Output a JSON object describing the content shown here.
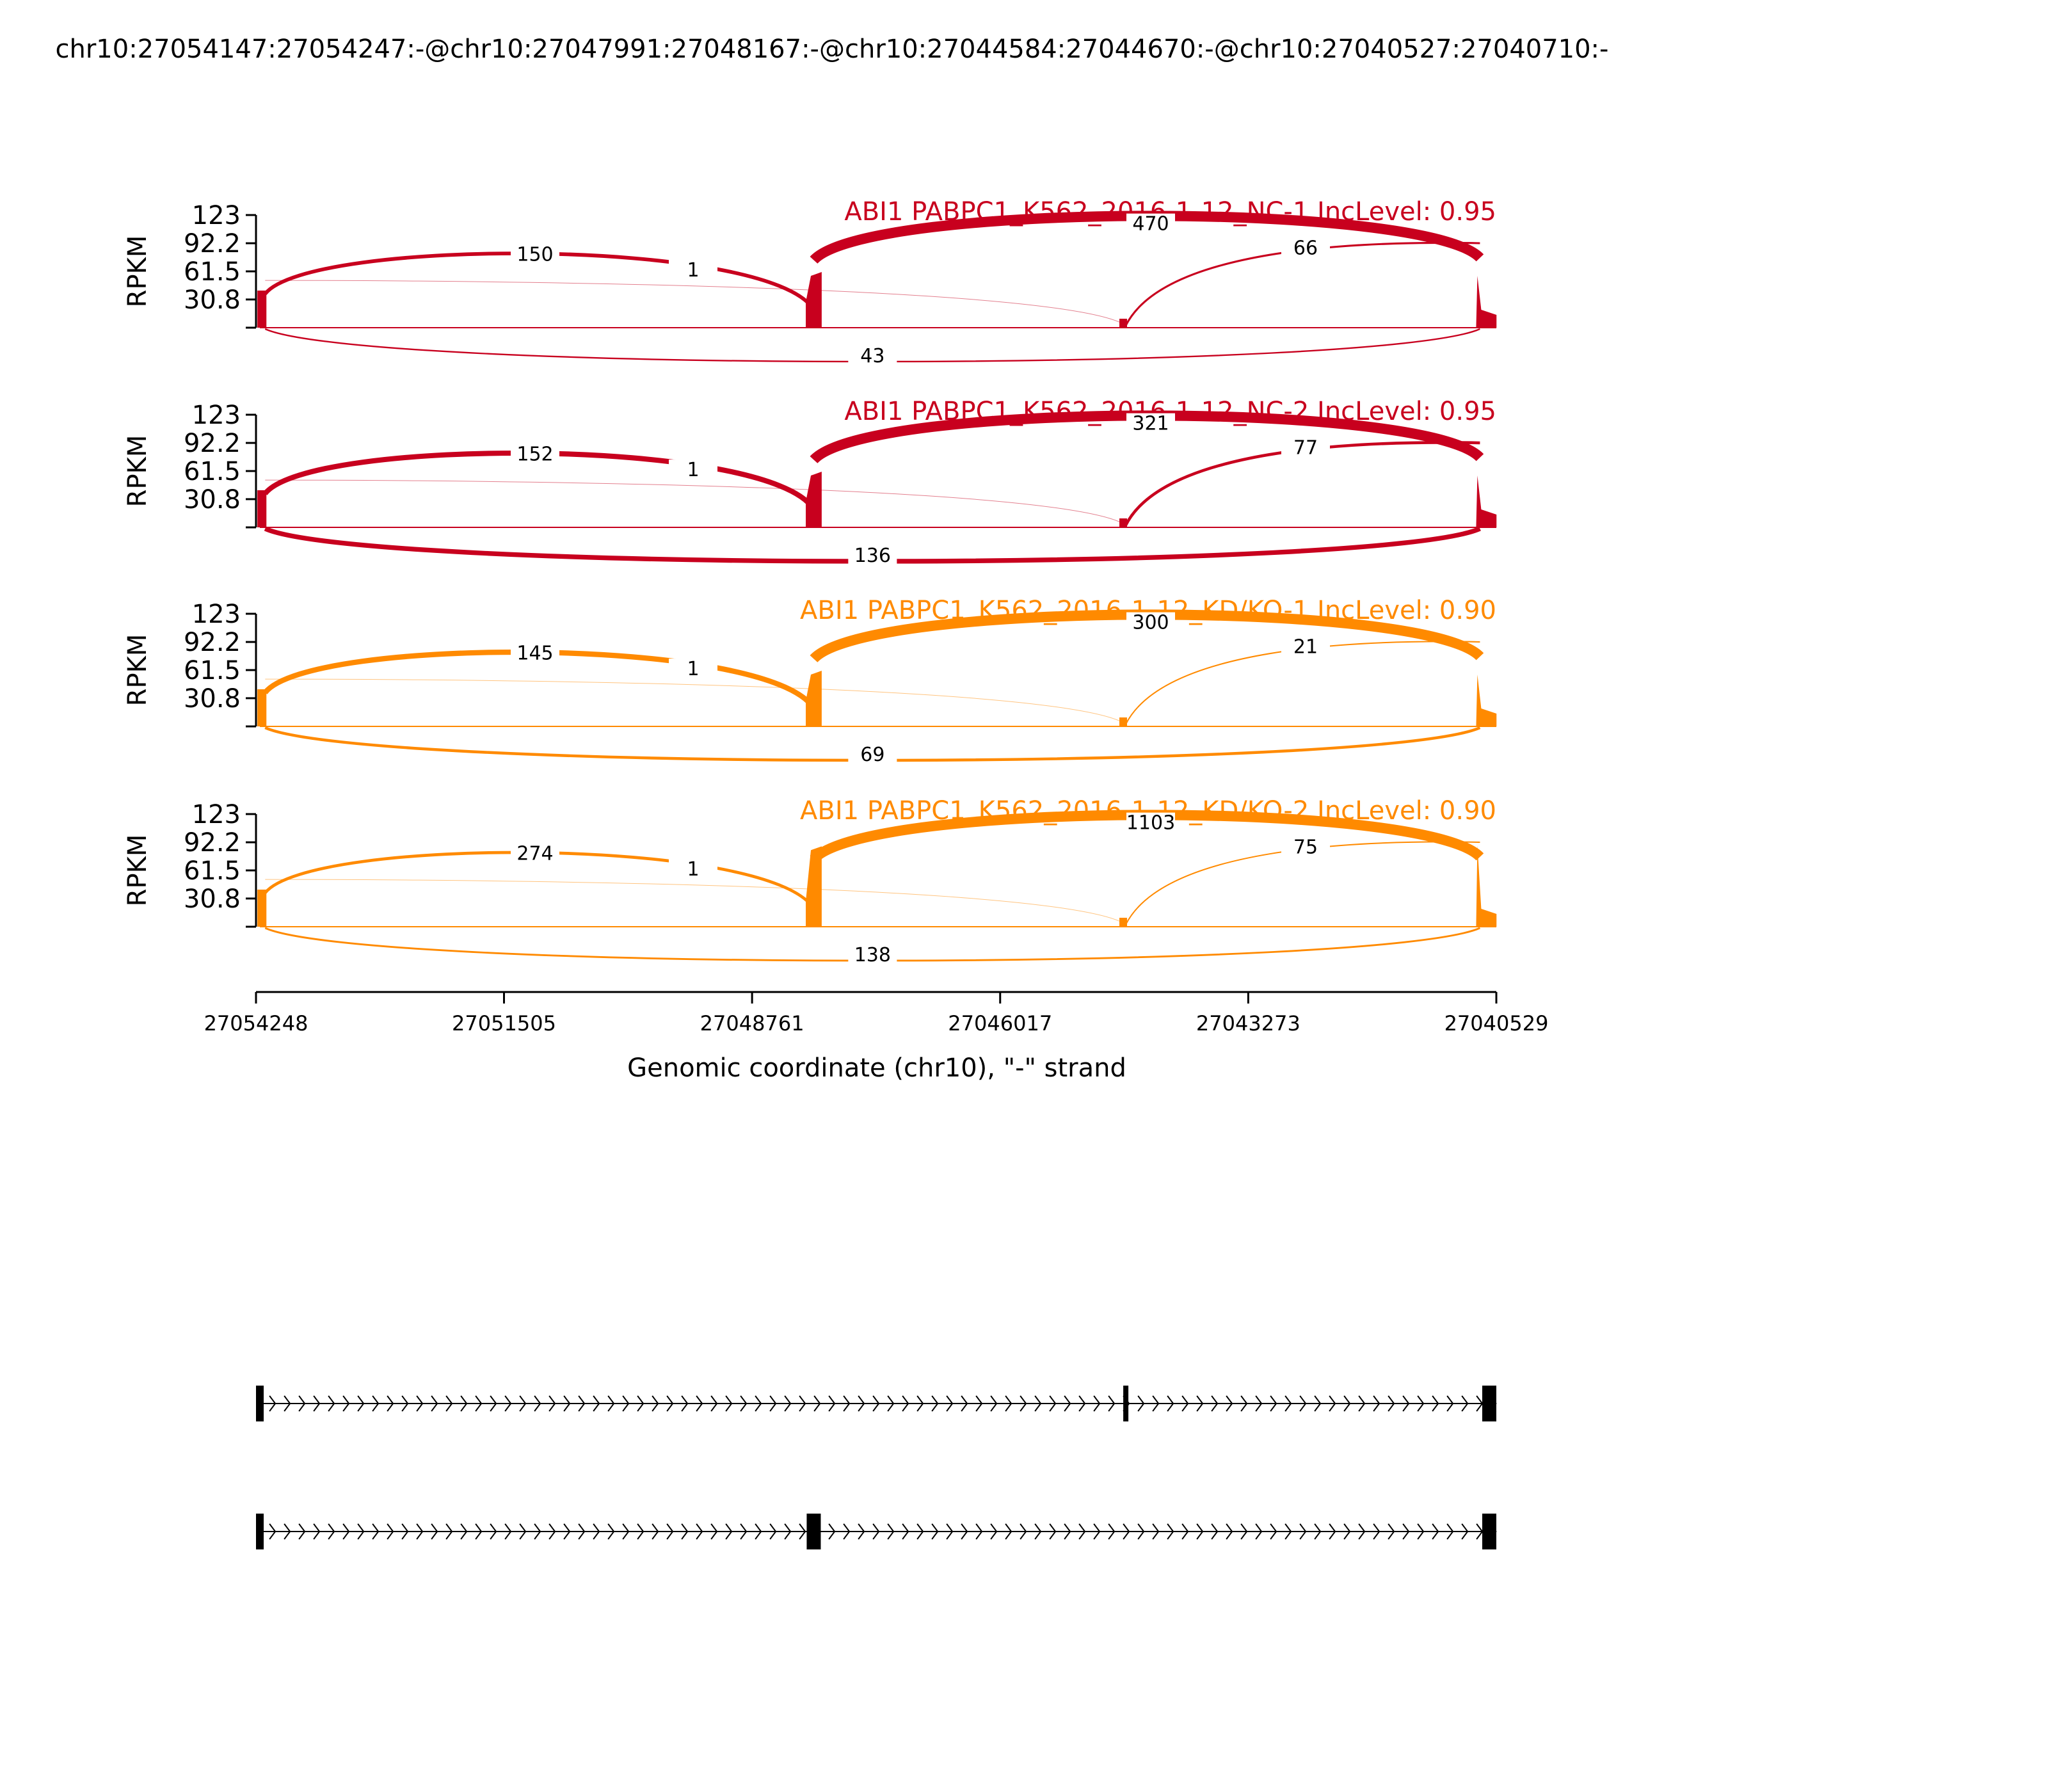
{
  "title": "chr10:27054147:27054247:-@chr10:27047991:27048167:-@chr10:27044584:27044670:-@chr10:27040527:27040710:-",
  "chart_data": {
    "type": "sashimi",
    "ylabel": "RPKM",
    "yticks": [
      "30.8",
      "61.5",
      "92.2",
      "123"
    ],
    "ylim": [
      0,
      123
    ],
    "xlabel": "Genomic coordinate (chr10), \"-\" strand",
    "xticks": [
      "27054248",
      "27051505",
      "27048761",
      "27046017",
      "27043273",
      "27040529"
    ],
    "xlim": [
      27054248,
      27040529
    ],
    "exons": {
      "e1": [
        27054147,
        27054247
      ],
      "e2": [
        27047991,
        27048167
      ],
      "e3": [
        27044584,
        27044670
      ],
      "e4": [
        27040527,
        27040710
      ]
    },
    "panels": [
      {
        "label": "ABI1 PABPC1_K562_2016-1-12_NC-1 IncLevel: 0.95",
        "color": "#c8001e",
        "junctions": [
          {
            "from": "e1",
            "to": "e2",
            "count": "150",
            "above": true
          },
          {
            "from": "e1",
            "to": "e3",
            "count": "1",
            "above": true
          },
          {
            "from": "e2",
            "to": "e4",
            "count": "470",
            "above": true
          },
          {
            "from": "e3",
            "to": "e4",
            "count": "66",
            "above": true
          },
          {
            "from": "e1",
            "to": "e4",
            "count": "43",
            "above": false
          }
        ]
      },
      {
        "label": "ABI1 PABPC1_K562_2016-1-12_NC-2 IncLevel: 0.95",
        "color": "#c8001e",
        "junctions": [
          {
            "from": "e1",
            "to": "e2",
            "count": "152",
            "above": true
          },
          {
            "from": "e1",
            "to": "e3",
            "count": "1",
            "above": true
          },
          {
            "from": "e2",
            "to": "e4",
            "count": "321",
            "above": true
          },
          {
            "from": "e3",
            "to": "e4",
            "count": "77",
            "above": true
          },
          {
            "from": "e1",
            "to": "e4",
            "count": "136",
            "above": false
          }
        ]
      },
      {
        "label": "ABI1 PABPC1_K562_2016-1-12_KD/KO-1 IncLevel: 0.90",
        "color": "#ff8a00",
        "junctions": [
          {
            "from": "e1",
            "to": "e2",
            "count": "145",
            "above": true
          },
          {
            "from": "e1",
            "to": "e3",
            "count": "1",
            "above": true
          },
          {
            "from": "e2",
            "to": "e4",
            "count": "300",
            "above": true
          },
          {
            "from": "e3",
            "to": "e4",
            "count": "21",
            "above": true
          },
          {
            "from": "e1",
            "to": "e4",
            "count": "69",
            "above": false
          }
        ]
      },
      {
        "label": "ABI1 PABPC1_K562_2016-1-12_KD/KO-2 IncLevel: 0.90",
        "color": "#ff8a00",
        "junctions": [
          {
            "from": "e1",
            "to": "e2",
            "count": "274",
            "above": true
          },
          {
            "from": "e1",
            "to": "e3",
            "count": "1",
            "above": true
          },
          {
            "from": "e2",
            "to": "e4",
            "count": "1103",
            "above": true
          },
          {
            "from": "e3",
            "to": "e4",
            "count": "75",
            "above": true
          },
          {
            "from": "e1",
            "to": "e4",
            "count": "138",
            "above": false
          }
        ]
      }
    ],
    "isoforms": [
      {
        "exons": [
          "e1",
          "e3",
          "e4"
        ]
      },
      {
        "exons": [
          "e1",
          "e2",
          "e4"
        ]
      }
    ]
  }
}
